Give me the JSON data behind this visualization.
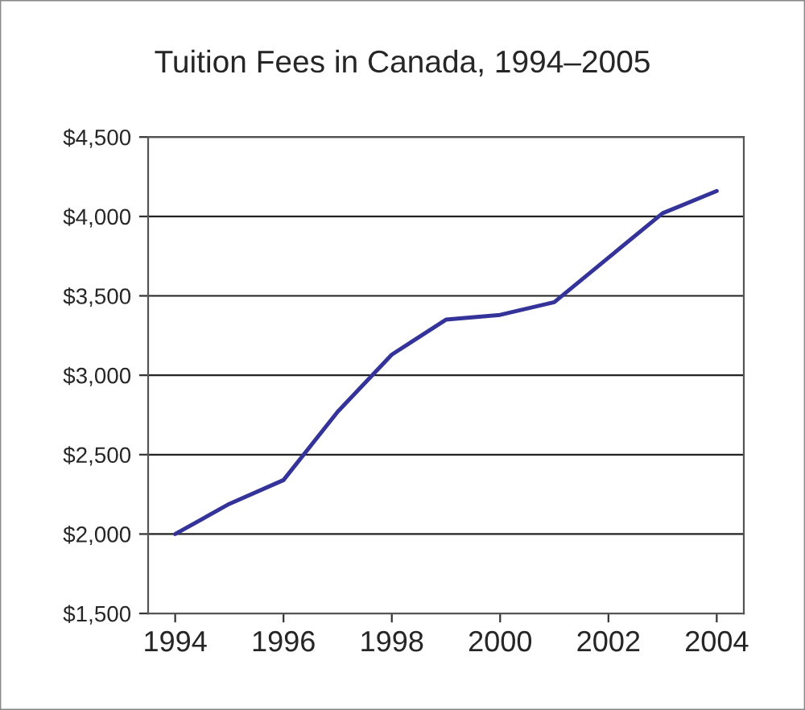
{
  "chart_data": {
    "type": "line",
    "title": "Tuition Fees in Canada, 1994–2005",
    "x": [
      1994,
      1995,
      1996,
      1997,
      1998,
      1999,
      2000,
      2001,
      2002,
      2003,
      2004
    ],
    "series": [
      {
        "color": "#333399",
        "values": [
          2000,
          2190,
          2340,
          2770,
          3130,
          3350,
          3380,
          3460,
          3740,
          4020,
          4160
        ]
      }
    ],
    "xlim": [
      1993.5,
      2004.5
    ],
    "xticks": [
      1994,
      1996,
      1998,
      2000,
      2002,
      2004
    ],
    "ylim": [
      1500,
      4500
    ],
    "yticks": [
      {
        "value": 1500,
        "label": "$1,500"
      },
      {
        "value": 2000,
        "label": "$2,000"
      },
      {
        "value": 2500,
        "label": "$2,500"
      },
      {
        "value": 3000,
        "label": "$3,000"
      },
      {
        "value": 3500,
        "label": "$3,500"
      },
      {
        "value": 4000,
        "label": "$4,000"
      },
      {
        "value": 4500,
        "label": "$4,500"
      }
    ],
    "grid": "y",
    "legend": false,
    "marker": "none",
    "line_style": "solid"
  }
}
